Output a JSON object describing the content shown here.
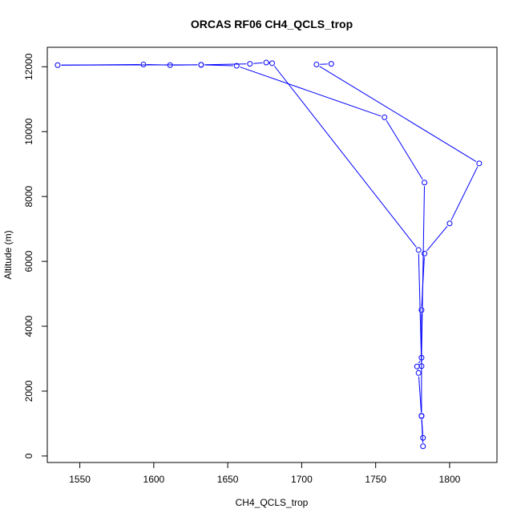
{
  "chart_data": {
    "type": "line",
    "title": "ORCAS RF06 CH4_QCLS_trop",
    "xlabel": "CH4_QCLS_trop",
    "ylabel": "Altitude (m)",
    "xlim": [
      1528,
      1832
    ],
    "ylim": [
      -200,
      12600
    ],
    "xticks": [
      1550,
      1600,
      1650,
      1700,
      1750,
      1800
    ],
    "yticks": [
      0,
      2000,
      4000,
      6000,
      8000,
      10000,
      12000
    ],
    "color": "#0000ff",
    "grid": false,
    "series": [
      {
        "x": [
          1720,
          1710,
          1820,
          1800,
          1783,
          1781,
          1781,
          1782,
          1782,
          1781,
          1779,
          1778,
          1781,
          1783,
          1756,
          1656,
          1632,
          1611,
          1593,
          1535,
          1632,
          1665,
          1676,
          1680,
          1779,
          1781
        ],
        "y": [
          12090,
          12070,
          9020,
          7170,
          6240,
          4500,
          1240,
          560,
          300,
          1230,
          2560,
          2760,
          3030,
          8430,
          10440,
          12030,
          12060,
          12050,
          12070,
          12050,
          12060,
          12090,
          12130,
          12110,
          6350,
          2770
        ]
      }
    ]
  }
}
